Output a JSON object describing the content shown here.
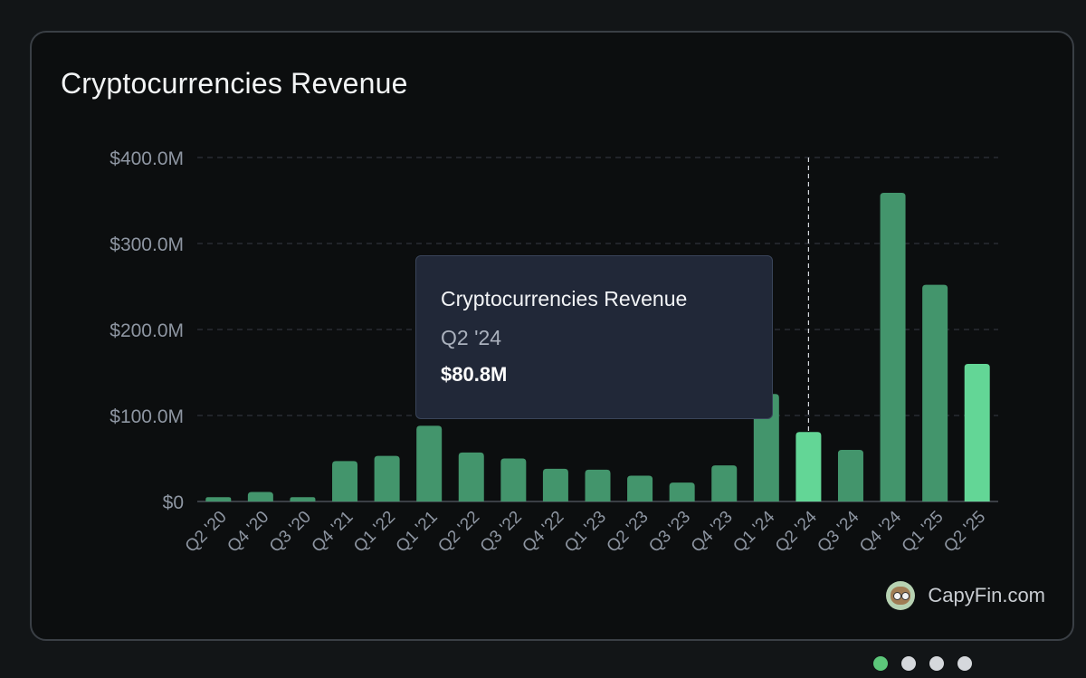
{
  "card": {
    "title": "Cryptocurrencies Revenue"
  },
  "chart_data": {
    "type": "bar",
    "title": "Cryptocurrencies Revenue",
    "categories": [
      "Q2 '20",
      "Q4 '20",
      "Q3 '20",
      "Q4 '21",
      "Q1 '22",
      "Q1 '21",
      "Q2 '22",
      "Q3 '22",
      "Q4 '22",
      "Q1 '23",
      "Q2 '23",
      "Q3 '23",
      "Q4 '23",
      "Q1 '24",
      "Q2 '24",
      "Q3 '24",
      "Q4 '24",
      "Q1 '25",
      "Q2 '25"
    ],
    "values": [
      5,
      11,
      5,
      47,
      53,
      88,
      57,
      50,
      38,
      37,
      30,
      22,
      42,
      125,
      80.8,
      60,
      359,
      252,
      160
    ],
    "ylim": [
      0,
      400
    ],
    "yticks": [
      0,
      100,
      200,
      300,
      400
    ],
    "ytick_labels": [
      "$0",
      "$100.0M",
      "$200.0M",
      "$300.0M",
      "$400.0M"
    ],
    "grid": true,
    "highlight_index": 14,
    "bar_color": "#43956c",
    "highlight_color": "#63d696",
    "last_bar_color": "#63d696"
  },
  "tooltip": {
    "title": "Cryptocurrencies Revenue",
    "period": "Q2 '24",
    "value": "$80.8M"
  },
  "brand": {
    "name": "CapyFin.com",
    "icon": "capybara-logo-icon"
  },
  "pagination": {
    "count": 4,
    "active_index": 0,
    "active_color": "#5cc77a"
  }
}
